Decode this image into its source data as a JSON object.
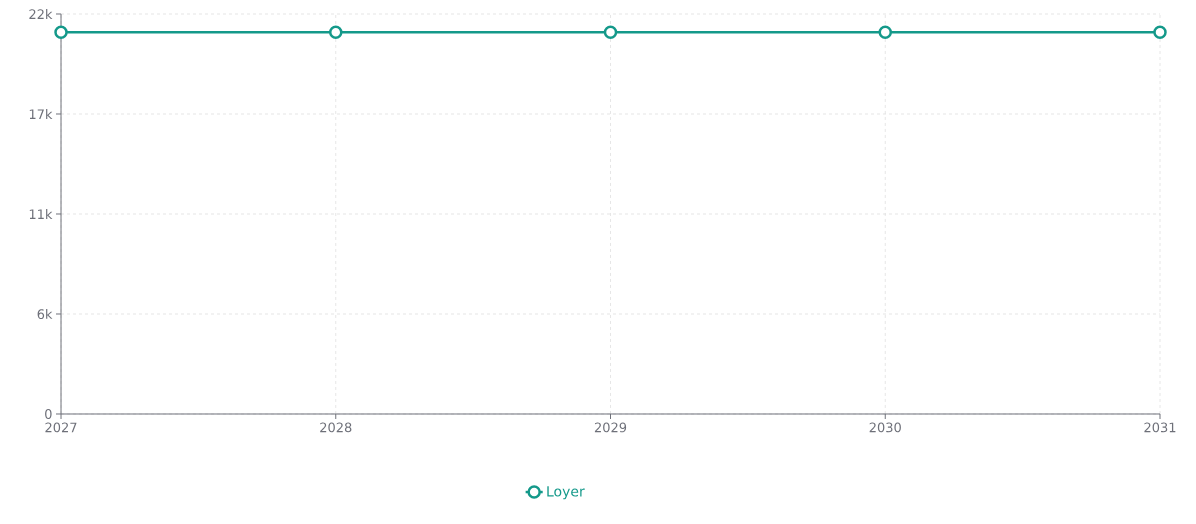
{
  "chart_data": {
    "type": "line",
    "categories": [
      "2027",
      "2028",
      "2029",
      "2030",
      "2031"
    ],
    "series": [
      {
        "name": "Loyer",
        "color": "#14998a",
        "values": [
          21000,
          21000,
          21000,
          21000,
          21000
        ]
      }
    ],
    "ylim": [
      0,
      22000
    ],
    "yticks": [
      0,
      {
        "value": 5500,
        "label": "6k"
      },
      {
        "value": 11000,
        "label": "11k"
      },
      {
        "value": 16500,
        "label": "17k"
      },
      {
        "value": 22000,
        "label": "22k"
      }
    ],
    "grid": true,
    "legend": "bottom",
    "marker": "circle",
    "line_style": "solid"
  }
}
